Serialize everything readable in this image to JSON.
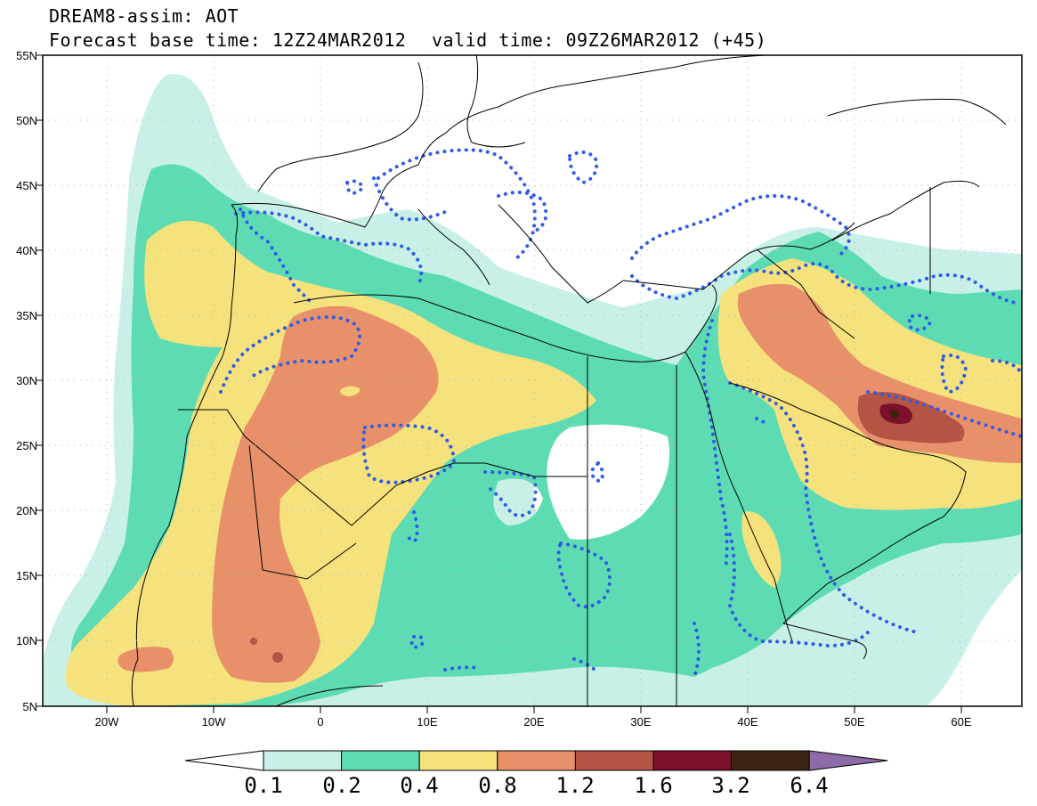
{
  "header": {
    "title": "DREAM8-assim: AOT",
    "base_time": "Forecast base time: 12Z24MAR2012",
    "valid_time": "valid time: 09Z26MAR2012 (+45)"
  },
  "axes": {
    "lat_ticks": [
      "55N",
      "50N",
      "45N",
      "40N",
      "35N",
      "30N",
      "25N",
      "20N",
      "15N",
      "10N",
      "5N"
    ],
    "lon_ticks": [
      "20W",
      "10W",
      "0",
      "10E",
      "20E",
      "30E",
      "40E",
      "50E",
      "60E"
    ]
  },
  "legend": {
    "levels": [
      "0.1",
      "0.2",
      "0.4",
      "0.8",
      "1.2",
      "1.6",
      "3.2",
      "6.4"
    ],
    "colors": [
      "#ffffff",
      "#c8f0e9",
      "#5ddcb4",
      "#f5e27c",
      "#e8906a",
      "#b45444",
      "#7b0f2c",
      "#3d2412",
      "#8e6aa8"
    ]
  },
  "colors": {
    "aot_01_02": "#c8f0e9",
    "aot_02_04": "#5ddcb4",
    "aot_04_08": "#f5e27c",
    "aot_08_12": "#e8906a",
    "aot_12_16": "#b45444",
    "aot_16_32": "#7b0f2c",
    "aot_32_64": "#3d2412",
    "contour_dotted": "#2e5ce6"
  }
}
